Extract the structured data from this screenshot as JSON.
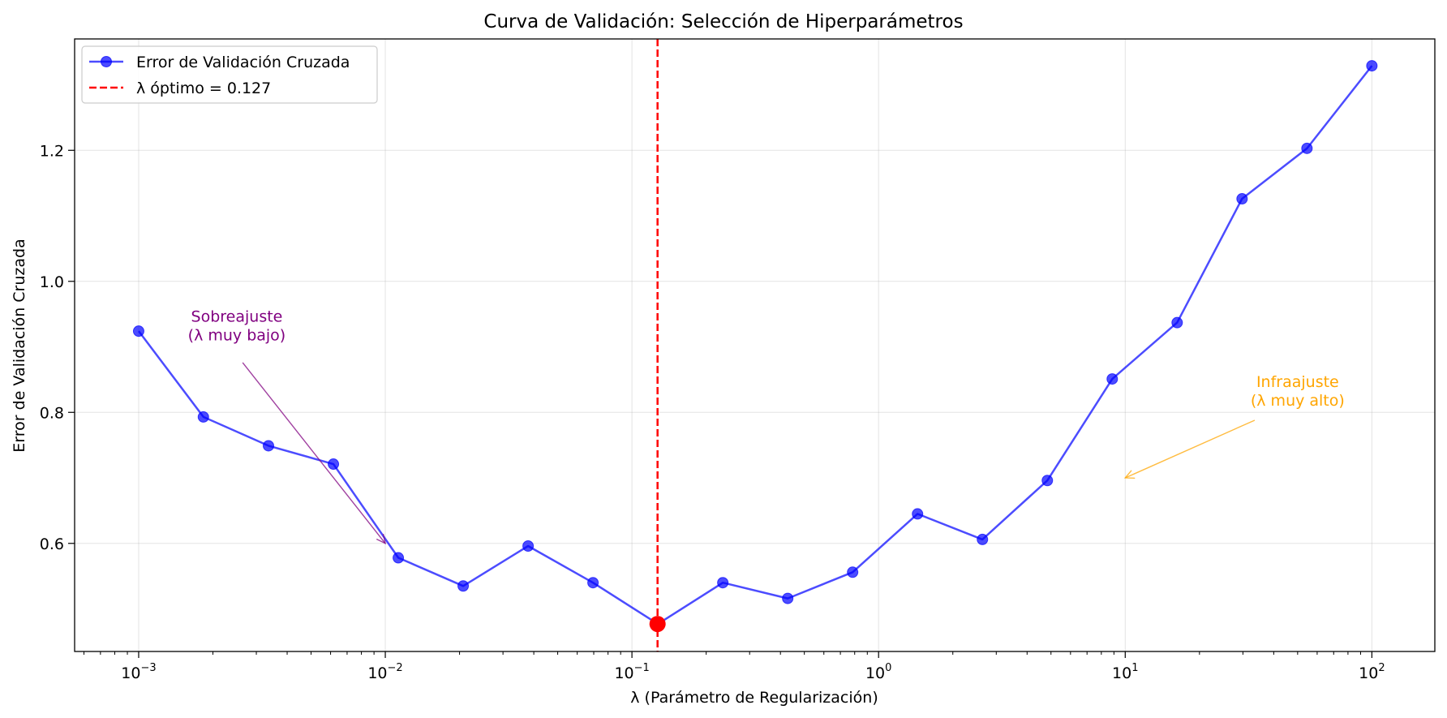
{
  "chart_data": {
    "type": "line",
    "title": "Curva de Validación: Selección de Hiperparámetros",
    "xlabel": "λ (Parámetro de Regularización)",
    "ylabel": "Error de Validación Cruzada",
    "xscale": "log",
    "xlim": [
      0.00055,
      180
    ],
    "ylim": [
      0.435,
      1.37
    ],
    "grid": true,
    "legend_placement": "top-left",
    "x_ticks": [
      {
        "value": 0.001,
        "base": "10",
        "exp": "−3"
      },
      {
        "value": 0.01,
        "base": "10",
        "exp": "−2"
      },
      {
        "value": 0.1,
        "base": "10",
        "exp": "−1"
      },
      {
        "value": 1,
        "base": "10",
        "exp": "0"
      },
      {
        "value": 10,
        "base": "10",
        "exp": "1"
      },
      {
        "value": 100,
        "base": "10",
        "exp": "2"
      }
    ],
    "y_ticks": [
      {
        "value": 0.6,
        "label": "0.6"
      },
      {
        "value": 0.8,
        "label": "0.8"
      },
      {
        "value": 1.0,
        "label": "1.0"
      },
      {
        "value": 1.2,
        "label": "1.2"
      }
    ],
    "series": [
      {
        "name": "Error de Validación Cruzada",
        "color": "#0000ff",
        "marker": "circle",
        "x": [
          0.001,
          0.00183,
          0.00336,
          0.00616,
          0.01129,
          0.02069,
          0.03793,
          0.06952,
          0.12743,
          0.23357,
          0.42813,
          0.78476,
          1.43845,
          2.63665,
          4.83293,
          8.85867,
          16.2378,
          29.7635,
          54.5559,
          100
        ],
        "values": [
          0.924,
          0.793,
          0.749,
          0.721,
          0.578,
          0.535,
          0.596,
          0.54,
          0.477,
          0.54,
          0.516,
          0.556,
          0.645,
          0.606,
          0.696,
          0.851,
          0.937,
          1.126,
          1.203,
          1.329
        ]
      }
    ],
    "optimal": {
      "legend_label": "λ óptimo = 0.127",
      "x": 0.127,
      "y": 0.477,
      "color": "#ff0000"
    },
    "annotations": [
      {
        "lines": [
          "Sobreajuste",
          "(λ muy bajo)"
        ],
        "color": "#800080",
        "text_x": 0.0025,
        "text_y": 0.91,
        "arrow_from_x": 0.00264,
        "arrow_from_y": 0.876,
        "arrow_to_x": 0.01,
        "arrow_to_y": 0.6
      },
      {
        "lines": [
          "Infraajuste",
          "(λ muy alto)"
        ],
        "color": "#ffa500",
        "text_x": 50,
        "text_y": 0.81,
        "arrow_from_x": 33.5,
        "arrow_from_y": 0.788,
        "arrow_to_x": 10,
        "arrow_to_y": 0.7
      }
    ]
  }
}
